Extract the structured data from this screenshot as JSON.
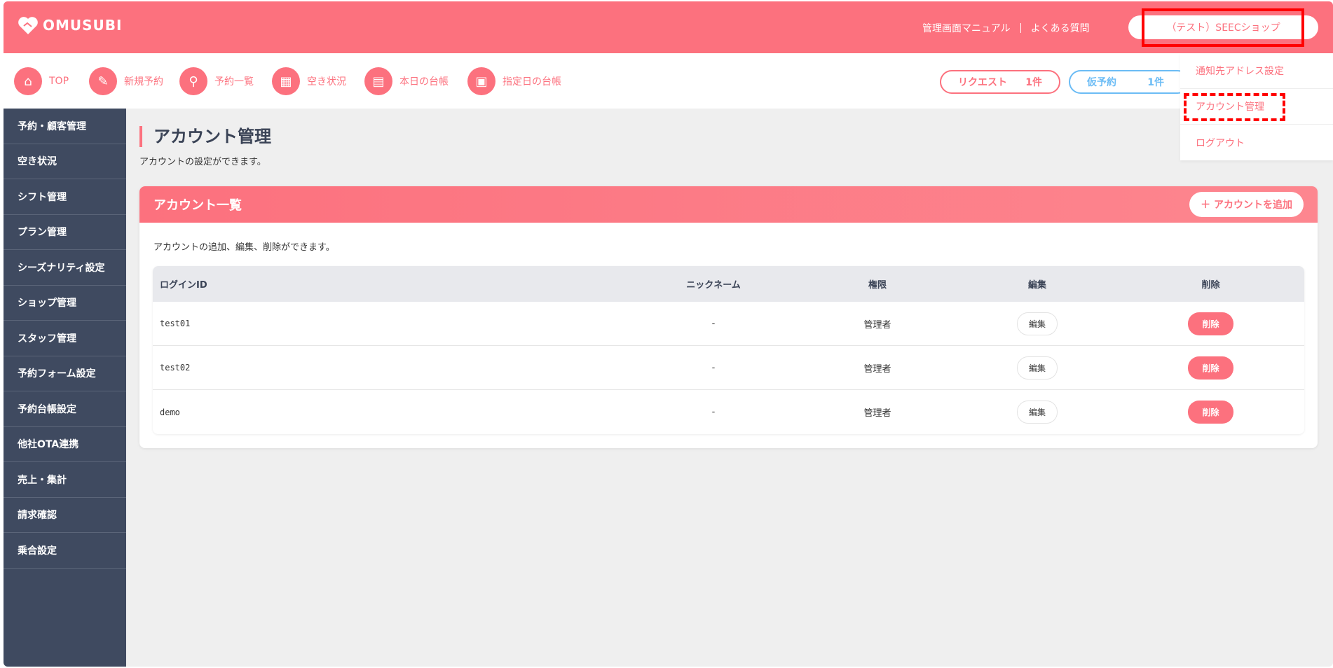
{
  "header": {
    "logo": "OMUSUBI",
    "manual": "管理画面マニュアル",
    "faq": "よくある質問",
    "shop": "（テスト）SEECショップ"
  },
  "nav": {
    "items": [
      {
        "label": "TOP",
        "icon": "home-icon"
      },
      {
        "label": "新規予約",
        "icon": "edit-icon"
      },
      {
        "label": "予約一覧",
        "icon": "search-icon"
      },
      {
        "label": "空き状況",
        "icon": "grid-icon"
      },
      {
        "label": "本日の台帳",
        "icon": "book-icon"
      },
      {
        "label": "指定日の台帳",
        "icon": "calendar-icon"
      }
    ],
    "request": {
      "label": "リクエスト",
      "count": "1件"
    },
    "tentative": {
      "label": "仮予約",
      "count": "1件"
    }
  },
  "dropdown": [
    "通知先アドレス設定",
    "アカウント管理",
    "ログアウト"
  ],
  "sidebar": [
    "予約・顧客管理",
    "空き状況",
    "シフト管理",
    "プラン管理",
    "シーズナリティ設定",
    "ショップ管理",
    "スタッフ管理",
    "予約フォーム設定",
    "予約台帳設定",
    "他社OTA連携",
    "売上・集計",
    "請求確認",
    "乗合設定"
  ],
  "page": {
    "title": "アカウント管理",
    "subtitle": "アカウントの設定ができます。"
  },
  "card": {
    "title": "アカウント一覧",
    "add": "＋ アカウントを追加",
    "desc": "アカウントの追加、編集、削除ができます。",
    "columns": [
      "ログインID",
      "ニックネーム",
      "権限",
      "編集",
      "削除"
    ],
    "rows": [
      {
        "id": "test01",
        "nick": "-",
        "role": "管理者",
        "edit": "編集",
        "del": "削除"
      },
      {
        "id": "test02",
        "nick": "-",
        "role": "管理者",
        "edit": "編集",
        "del": "削除"
      },
      {
        "id": "demo",
        "nick": "-",
        "role": "管理者",
        "edit": "編集",
        "del": "削除"
      }
    ]
  },
  "colors": {
    "accent": "#fc717e",
    "sidebar": "#3f4a60",
    "tentative": "#6bbcf5"
  }
}
